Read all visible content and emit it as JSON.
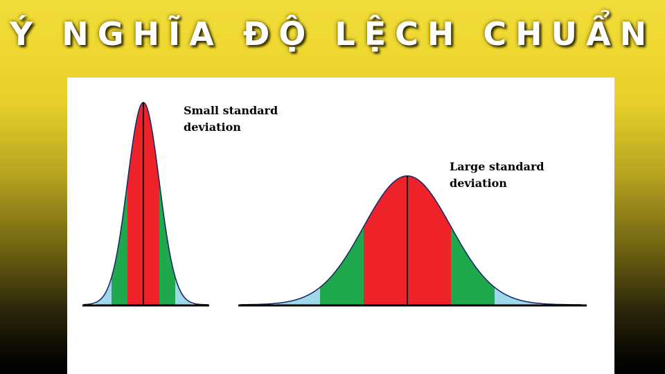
{
  "title": "Ý NGHĨA ĐỘ LỆCH CHUẨN",
  "labels": {
    "small": {
      "line1": "Small standard",
      "line2": "deviation"
    },
    "large": {
      "line1": "Large standard",
      "line2": "deviation"
    }
  },
  "colors": {
    "within_1sd": "#ee2229",
    "within_2sd": "#20a94c",
    "within_3sd": "#9dd9ea",
    "curve_outline": "#1b2a6b",
    "axis": "#000000",
    "mean_line": "#000000",
    "panel": "#ffffff"
  }
}
